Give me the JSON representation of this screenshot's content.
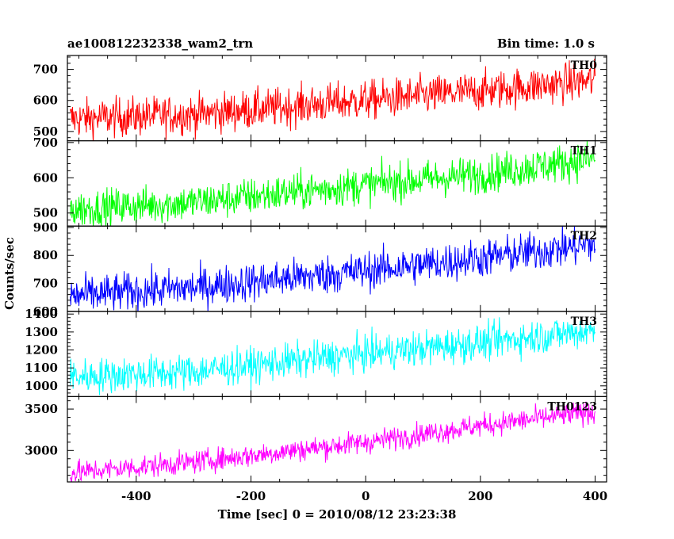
{
  "header": {
    "title_left": "ae100812232338_wam2_trn",
    "title_right": "Bin time: 1.0 s"
  },
  "axes": {
    "xlabel": "Time [sec] 0 = 2010/08/12 23:23:38",
    "ylabel": "Counts/sec"
  },
  "chart_data": {
    "type": "line",
    "x_range": [
      -515,
      400
    ],
    "x_step": 1,
    "xlim": [
      -520,
      420
    ],
    "xticks": [
      -400,
      -200,
      0,
      200,
      400
    ],
    "shared_x": true,
    "panels": [
      {
        "name": "TH0",
        "color": "#ff0000",
        "ylim": [
          470,
          745
        ],
        "yticks": [
          500,
          600,
          700
        ],
        "trend": [
          [
            -515,
            540
          ],
          [
            -300,
            555
          ],
          [
            0,
            600
          ],
          [
            200,
            630
          ],
          [
            400,
            665
          ]
        ],
        "scatter": 32
      },
      {
        "name": "TH1",
        "color": "#00ff00",
        "ylim": [
          463,
          705
        ],
        "yticks": [
          500,
          600,
          700
        ],
        "trend": [
          [
            -515,
            510
          ],
          [
            -300,
            530
          ],
          [
            0,
            580
          ],
          [
            200,
            610
          ],
          [
            400,
            655
          ]
        ],
        "scatter": 27
      },
      {
        "name": "TH2",
        "color": "#0000ff",
        "ylim": [
          600,
          905
        ],
        "yticks": [
          600,
          700,
          800,
          900
        ],
        "trend": [
          [
            -515,
            655
          ],
          [
            -300,
            685
          ],
          [
            0,
            745
          ],
          [
            200,
            790
          ],
          [
            400,
            840
          ]
        ],
        "scatter": 35
      },
      {
        "name": "TH3",
        "color": "#00ffff",
        "ylim": [
          940,
          1415
        ],
        "yticks": [
          1000,
          1100,
          1200,
          1300,
          1400
        ],
        "trend": [
          [
            -515,
            1050
          ],
          [
            -300,
            1080
          ],
          [
            0,
            1180
          ],
          [
            200,
            1240
          ],
          [
            400,
            1310
          ]
        ],
        "scatter": 50
      },
      {
        "name": "TH0123",
        "color": "#ff00ff",
        "ylim": [
          2620,
          3650
        ],
        "yticks": [
          3000,
          3500
        ],
        "trend": [
          [
            -515,
            2730
          ],
          [
            -300,
            2860
          ],
          [
            0,
            3100
          ],
          [
            200,
            3300
          ],
          [
            400,
            3470
          ]
        ],
        "scatter": 70
      }
    ]
  }
}
